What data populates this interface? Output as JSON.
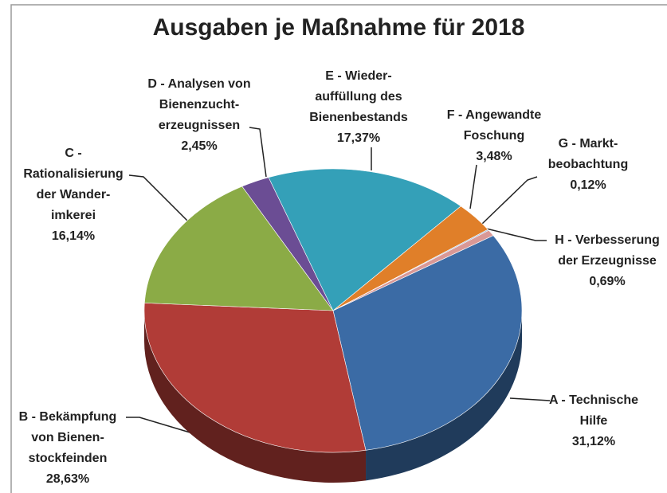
{
  "chart_data": {
    "type": "pie",
    "title": "Ausgaben je Maßnahme für 2018",
    "categories": [
      [
        "A - Technische",
        "Hilfe"
      ],
      [
        "B - Bekämpfung",
        "von Bienen-",
        "stockfeinden"
      ],
      [
        "C -",
        "Rationalisierung",
        "der Wander-",
        "imkerei"
      ],
      [
        "D - Analysen von",
        "Bienenzucht-",
        "erzeugnissen"
      ],
      [
        "E - Wieder-",
        "auffüllung des",
        "Bienenbestands"
      ],
      [
        "F - Angewandte",
        "Foschung"
      ],
      [
        "G - Markt-",
        "beobachtung"
      ],
      [
        "H - Verbesserung",
        "der Erzeugnisse"
      ]
    ],
    "values": [
      31.12,
      28.63,
      16.14,
      2.45,
      17.37,
      3.48,
      0.12,
      0.69
    ],
    "value_labels": [
      "31,12%",
      "28,63%",
      "16,14%",
      "2,45%",
      "17,37%",
      "3,48%",
      "0,12%",
      "0,69%"
    ],
    "colors": [
      "#3b6ba5",
      "#b13c37",
      "#8bab46",
      "#6b4d94",
      "#34a0b8",
      "#e07f29",
      "#9db5d7",
      "#d99896"
    ]
  }
}
